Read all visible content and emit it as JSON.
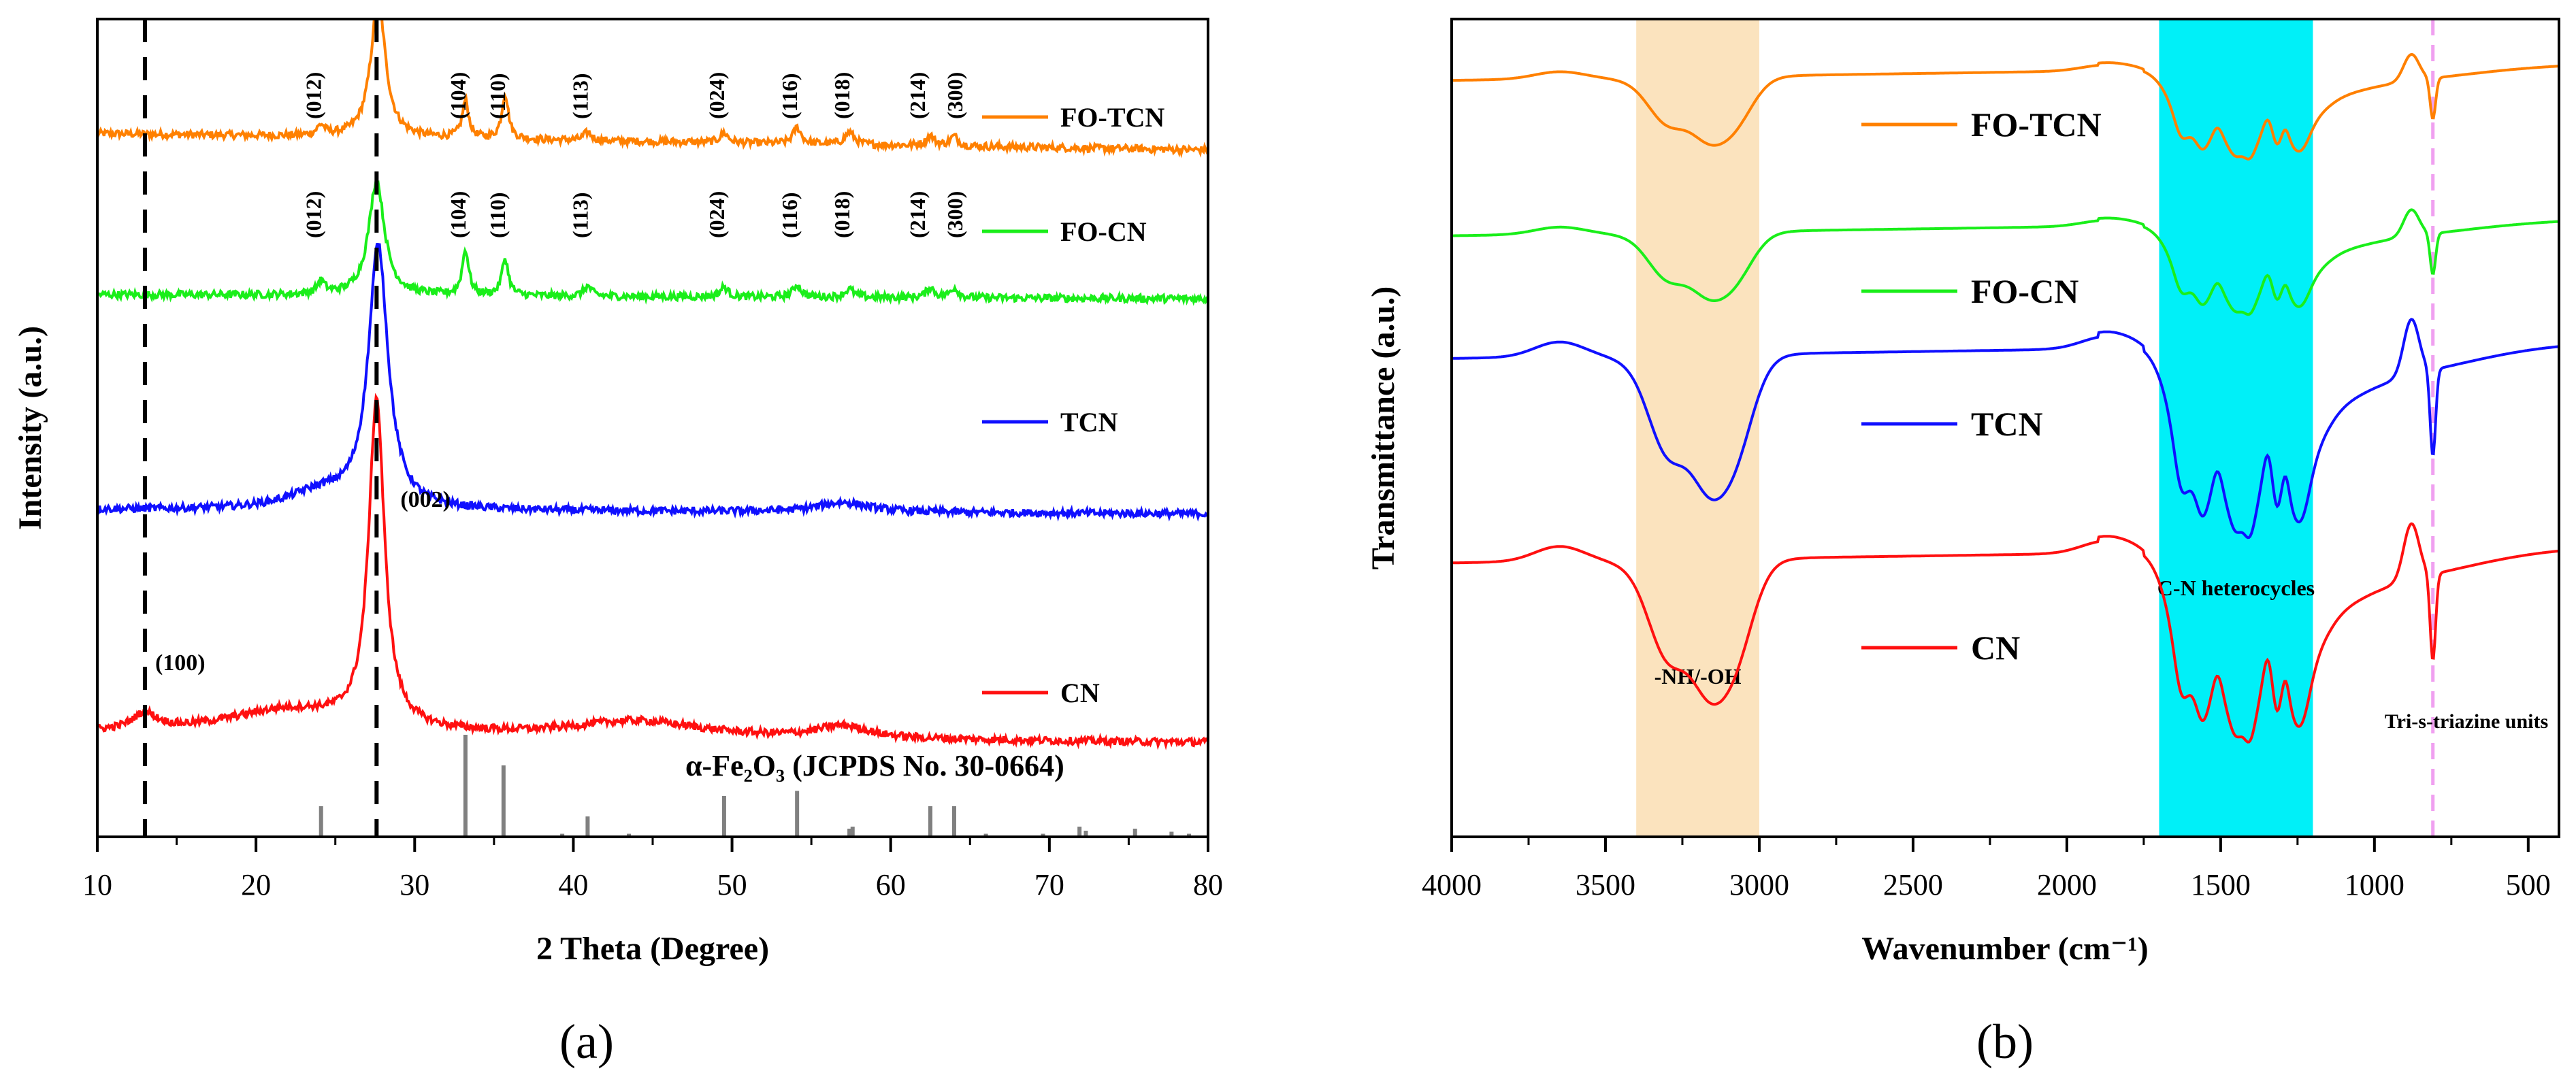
{
  "chart_data": [
    {
      "panel": "(a)",
      "type": "line",
      "title": "",
      "xlabel": "2 Theta (Degree)",
      "ylabel": "Intensity (a.u.)",
      "xlim": [
        10,
        80
      ],
      "xticks": [
        10,
        20,
        30,
        40,
        50,
        60,
        70,
        80
      ],
      "grid": false,
      "dashed_lines_x": [
        13.0,
        27.6
      ],
      "legend": [
        "FO-TCN",
        "FO-CN",
        "TCN",
        "CN"
      ],
      "series": [
        {
          "name": "FO-TCN",
          "color": "#ff8000",
          "offset": 0.86,
          "baseline": 0.0,
          "peaks": [
            {
              "x": 24.1,
              "h": 0.012,
              "w": 0.3
            },
            {
              "x": 27.7,
              "h": 0.17,
              "w": 0.55
            },
            {
              "x": 33.2,
              "h": 0.045,
              "w": 0.25
            },
            {
              "x": 35.7,
              "h": 0.055,
              "w": 0.25
            },
            {
              "x": 40.9,
              "h": 0.01,
              "w": 0.3
            },
            {
              "x": 49.5,
              "h": 0.012,
              "w": 0.3
            },
            {
              "x": 54.1,
              "h": 0.02,
              "w": 0.3
            },
            {
              "x": 57.4,
              "h": 0.015,
              "w": 0.35
            },
            {
              "x": 62.5,
              "h": 0.012,
              "w": 0.3
            },
            {
              "x": 64.0,
              "h": 0.012,
              "w": 0.3
            }
          ],
          "slope": -0.02
        },
        {
          "name": "FO-CN",
          "color": "#1aee1a",
          "offset": 0.663,
          "baseline": 0.0,
          "peaks": [
            {
              "x": 24.1,
              "h": 0.015,
              "w": 0.3
            },
            {
              "x": 27.6,
              "h": 0.14,
              "w": 0.6
            },
            {
              "x": 33.2,
              "h": 0.055,
              "w": 0.25
            },
            {
              "x": 35.7,
              "h": 0.045,
              "w": 0.25
            },
            {
              "x": 40.9,
              "h": 0.012,
              "w": 0.3
            },
            {
              "x": 49.5,
              "h": 0.012,
              "w": 0.3
            },
            {
              "x": 54.1,
              "h": 0.015,
              "w": 0.3
            },
            {
              "x": 57.4,
              "h": 0.01,
              "w": 0.35
            },
            {
              "x": 62.5,
              "h": 0.012,
              "w": 0.3
            },
            {
              "x": 64.0,
              "h": 0.012,
              "w": 0.3
            }
          ],
          "slope": -0.005
        },
        {
          "name": "TCN",
          "color": "#1010ff",
          "offset": 0.4,
          "baseline": 0.0,
          "peaks": [
            {
              "x": 27.7,
              "h": 0.32,
              "w": 0.75
            },
            {
              "x": 24.0,
              "h": 0.02,
              "w": 2.5
            },
            {
              "x": 57.0,
              "h": 0.012,
              "w": 2.0
            }
          ],
          "slope": -0.005
        },
        {
          "name": "CN",
          "color": "#ff1010",
          "offset": 0.125,
          "baseline": 0.0,
          "peaks": [
            {
              "x": 27.6,
              "h": 0.4,
              "w": 0.6
            },
            {
              "x": 13.0,
              "h": 0.02,
              "w": 1.0
            },
            {
              "x": 22.0,
              "h": 0.03,
              "w": 5.0
            },
            {
              "x": 44.0,
              "h": 0.02,
              "w": 5.0
            },
            {
              "x": 57.0,
              "h": 0.015,
              "w": 2.0
            }
          ],
          "slope": -0.01
        }
      ],
      "plane_labels_top": [
        "(012)",
        "(104)",
        "(110)",
        "(113)",
        "(024)",
        "(116)",
        "(018)",
        "(214)",
        "(300)"
      ],
      "plane_labels_top_x": [
        24.1,
        33.2,
        35.7,
        40.9,
        49.5,
        54.1,
        57.4,
        62.5,
        64.0
      ],
      "cn_plane_labels": [
        "(100)",
        "(002)"
      ],
      "cn_plane_labels_x": [
        13.0,
        27.6
      ],
      "reference": {
        "label": "α-Fe₂O₃ (JCPDS No. 30-0664)",
        "color": "#808080",
        "sticks": [
          {
            "x": 24.1,
            "h": 30
          },
          {
            "x": 33.2,
            "h": 100
          },
          {
            "x": 35.6,
            "h": 70
          },
          {
            "x": 39.3,
            "h": 3
          },
          {
            "x": 40.9,
            "h": 20
          },
          {
            "x": 43.5,
            "h": 3
          },
          {
            "x": 49.5,
            "h": 40
          },
          {
            "x": 54.1,
            "h": 45
          },
          {
            "x": 57.4,
            "h": 8
          },
          {
            "x": 57.6,
            "h": 10
          },
          {
            "x": 62.5,
            "h": 30
          },
          {
            "x": 64.0,
            "h": 30
          },
          {
            "x": 66.0,
            "h": 3
          },
          {
            "x": 69.6,
            "h": 3
          },
          {
            "x": 71.9,
            "h": 10
          },
          {
            "x": 72.3,
            "h": 6
          },
          {
            "x": 75.4,
            "h": 8
          },
          {
            "x": 77.7,
            "h": 5
          },
          {
            "x": 78.8,
            "h": 3
          }
        ]
      }
    },
    {
      "panel": "(b)",
      "type": "line",
      "title": "",
      "xlabel": "Wavenumber (cm⁻¹)",
      "ylabel": "Transmittance (a.u.)",
      "xlim": [
        4000,
        400
      ],
      "xticks": [
        4000,
        3500,
        3000,
        2500,
        2000,
        1500,
        1000,
        500
      ],
      "grid": false,
      "legend": [
        "FO-TCN",
        "FO-CN",
        "TCN",
        "CN"
      ],
      "bands": [
        {
          "from": 3400,
          "to": 3000,
          "color": "#fbe3be",
          "label": "-NH/-OH"
        },
        {
          "from": 1700,
          "to": 1200,
          "color": "#00f0f8",
          "label": "C-N heterocycles"
        }
      ],
      "marker_line": {
        "x": 810,
        "color": "#f0a0f0",
        "label": "Tri-s-triazine units"
      },
      "series": [
        {
          "name": "FO-TCN",
          "color": "#ff8000",
          "offset": 0.925,
          "scale": 0.45
        },
        {
          "name": "FO-CN",
          "color": "#1aee1a",
          "offset": 0.735,
          "scale": 0.45
        },
        {
          "name": "TCN",
          "color": "#1010ff",
          "offset": 0.585,
          "scale": 0.95
        },
        {
          "name": "CN",
          "color": "#ff1010",
          "offset": 0.335,
          "scale": 0.95
        }
      ]
    }
  ],
  "captions": {
    "a": "(a)",
    "b": "(b)"
  }
}
